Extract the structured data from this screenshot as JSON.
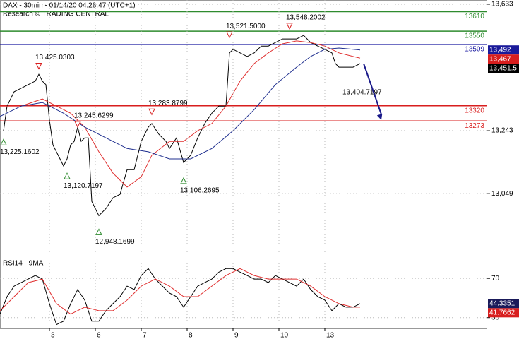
{
  "chart_data": [
    {
      "type": "line",
      "title": "DAX - 30min - 01/14/20 04:28:47 (UTC+1)",
      "subtitle": "Research © TRADING CENTRAL",
      "xlim": [
        0,
        138
      ],
      "ylim": [
        12862,
        13646
      ],
      "yticks": [
        {
          "value": 13633,
          "label": "13,633"
        },
        {
          "value": 13243,
          "label": "13,243"
        },
        {
          "value": 13049,
          "label": "13,049"
        }
      ],
      "grid": true,
      "series": [
        {
          "color": "#000000",
          "x": [
            1,
            2,
            4,
            6,
            8,
            10,
            11,
            12,
            13,
            14,
            15,
            17,
            18,
            19,
            20,
            21,
            22,
            23,
            24,
            25,
            26,
            28,
            30,
            32,
            34,
            36,
            38,
            40,
            42,
            43,
            45,
            47,
            48,
            50,
            52,
            54,
            56,
            58,
            60,
            62,
            64,
            65,
            66,
            68,
            70,
            72,
            74,
            76,
            78,
            80,
            82,
            84,
            86,
            88,
            90,
            92,
            94,
            95,
            96,
            98,
            100,
            102
          ],
          "values": [
            13243,
            13319,
            13363,
            13374,
            13385,
            13396,
            13417,
            13396,
            13385,
            13276,
            13199,
            13156,
            13134,
            13156,
            13199,
            13210,
            13254,
            13210,
            13221,
            13221,
            13025,
            12981,
            13003,
            13036,
            13047,
            13123,
            13123,
            13210,
            13254,
            13265,
            13232,
            13210,
            13188,
            13221,
            13145,
            13167,
            13221,
            13265,
            13297,
            13319,
            13319,
            13483,
            13494,
            13483,
            13472,
            13483,
            13504,
            13504,
            13515,
            13526,
            13526,
            13526,
            13537,
            13515,
            13504,
            13494,
            13483,
            13450,
            13439,
            13439,
            13439,
            13450
          ]
        },
        {
          "color": "#e03030",
          "x": [
            0,
            6,
            12,
            16,
            20,
            24,
            28,
            32,
            36,
            40,
            43,
            48,
            52,
            56,
            60,
            64,
            68,
            72,
            76,
            80,
            84,
            88,
            92,
            96,
            100,
            102
          ],
          "values": [
            13319,
            13319,
            13341,
            13319,
            13297,
            13254,
            13178,
            13112,
            13069,
            13101,
            13167,
            13210,
            13210,
            13243,
            13265,
            13319,
            13396,
            13450,
            13483,
            13511,
            13520,
            13515,
            13504,
            13483,
            13472,
            13467
          ]
        },
        {
          "color": "#1f2f8f",
          "x": [
            0,
            6,
            12,
            18,
            24,
            30,
            36,
            42,
            48,
            54,
            60,
            66,
            72,
            78,
            84,
            88,
            92,
            96,
            100,
            102
          ],
          "values": [
            13287,
            13319,
            13330,
            13297,
            13254,
            13221,
            13188,
            13178,
            13156,
            13156,
            13188,
            13243,
            13308,
            13385,
            13439,
            13472,
            13494,
            13498,
            13494,
            13492
          ]
        }
      ],
      "levels": [
        {
          "value": 13610,
          "color": "#2e8b2e"
        },
        {
          "value": 13550,
          "color": "#2e8b2e"
        },
        {
          "value": 13509,
          "color": "#1a1aa0"
        },
        {
          "value": 13320,
          "color": "#d81e1e"
        },
        {
          "value": 13273,
          "color": "#d81e1e"
        }
      ],
      "annotations": [
        {
          "x": 1,
          "value": 13225.1602,
          "label": "13,225.1602",
          "marker": "up"
        },
        {
          "x": 11,
          "value": 13425.0303,
          "label": "13,425.0303",
          "marker": "down"
        },
        {
          "x": 19,
          "value": 13120.7197,
          "label": "13,120.7197",
          "marker": "up"
        },
        {
          "x": 22,
          "value": 13245.6299,
          "label": "13,245.6299",
          "marker": "down"
        },
        {
          "x": 28,
          "value": 12948.1699,
          "label": "12,948.1699",
          "marker": "up"
        },
        {
          "x": 43,
          "value": 13283.8799,
          "label": "13,283.8799",
          "marker": "down"
        },
        {
          "x": 52,
          "value": 13106.2695,
          "label": "13,106.2695",
          "marker": "up"
        },
        {
          "x": 65,
          "value": 13521.5,
          "label": "13,521.5000",
          "marker": "down"
        },
        {
          "x": 82,
          "value": 13548.2002,
          "label": "13,548.2002",
          "marker": "down"
        },
        {
          "x": 98,
          "value": 13404.7197,
          "label": "13,404.7197"
        }
      ],
      "price_tags": [
        {
          "value": 13492,
          "label": "13,492",
          "color": "#1a1a9a"
        },
        {
          "value": 13467,
          "label": "13,467",
          "color": "#d81e1e"
        },
        {
          "value": 13451.5,
          "label": "13,451.5",
          "color": "#000000"
        }
      ],
      "arrow": {
        "x": [
          103,
          108
        ],
        "values": [
          13450,
          13276
        ],
        "color": "#1a1a8a"
      }
    },
    {
      "type": "line",
      "title": "RSI14 - 9MA",
      "xlim": [
        0,
        138
      ],
      "ylim": [
        19,
        91
      ],
      "yticks": [
        70,
        30
      ],
      "grid": true,
      "xticks": [
        {
          "value": 14,
          "label": "3"
        },
        {
          "value": 27,
          "label": "6"
        },
        {
          "value": 40,
          "label": "7"
        },
        {
          "value": 53,
          "label": "8"
        },
        {
          "value": 66,
          "label": "9"
        },
        {
          "value": 79,
          "label": "10"
        },
        {
          "value": 92,
          "label": "13"
        }
      ],
      "series": [
        {
          "color": "#000000",
          "x": [
            0,
            2,
            4,
            6,
            8,
            10,
            12,
            14,
            16,
            18,
            20,
            22,
            24,
            26,
            28,
            30,
            32,
            34,
            36,
            38,
            40,
            42,
            44,
            46,
            48,
            50,
            52,
            54,
            56,
            58,
            60,
            62,
            64,
            66,
            68,
            70,
            72,
            74,
            76,
            78,
            80,
            82,
            84,
            86,
            88,
            90,
            92,
            94,
            96,
            98,
            100,
            102
          ],
          "values": [
            33.6,
            51.4,
            62.1,
            65.7,
            69.3,
            72.9,
            69.3,
            44.3,
            22.9,
            26.4,
            44.3,
            58.6,
            47.9,
            26.4,
            26.4,
            37.1,
            44.3,
            51.4,
            62.1,
            58.6,
            72.9,
            80,
            69.3,
            62.1,
            55,
            51.4,
            40.7,
            51.4,
            62.1,
            65.7,
            69.3,
            76.4,
            80,
            80,
            76.4,
            72.9,
            69.3,
            69.3,
            65.7,
            72.9,
            69.3,
            65.7,
            62.1,
            69.3,
            58.6,
            51.4,
            47.9,
            37.1,
            44.3,
            40.7,
            40.7,
            44.3
          ]
        },
        {
          "color": "#e03030",
          "x": [
            0,
            4,
            8,
            12,
            16,
            20,
            24,
            28,
            32,
            36,
            40,
            44,
            48,
            52,
            56,
            60,
            64,
            68,
            72,
            76,
            80,
            84,
            88,
            92,
            96,
            100,
            102
          ],
          "values": [
            37.1,
            51.4,
            65.7,
            69.3,
            44.3,
            33.6,
            40.7,
            37.1,
            37.1,
            47.9,
            62.1,
            69.3,
            62.1,
            51.4,
            51.4,
            62.1,
            72.9,
            80,
            72.9,
            69.3,
            69.3,
            69.3,
            62.1,
            51.4,
            44.3,
            40.7,
            40.7
          ]
        }
      ],
      "price_tags": [
        {
          "value": 44.3351,
          "color": "#1a1a5a"
        },
        {
          "value": 41.7662,
          "color": "#d81e1e"
        }
      ]
    }
  ]
}
